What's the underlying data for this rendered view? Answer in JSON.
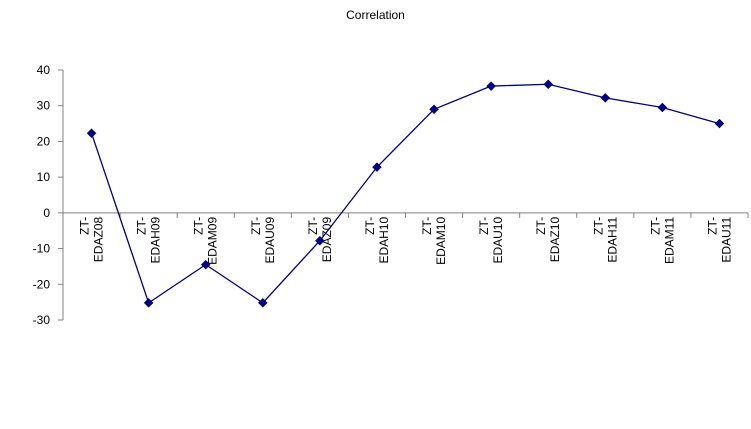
{
  "chart_data": {
    "type": "line",
    "title": "Correlation",
    "xlabel": "",
    "ylabel": "",
    "categories": [
      [
        "ZT-",
        "EDAZ08"
      ],
      [
        "ZT-",
        "EDAH09"
      ],
      [
        "ZT-",
        "EDAM09"
      ],
      [
        "ZT-",
        "EDAU09"
      ],
      [
        "ZT-",
        "EDAZ09"
      ],
      [
        "ZT-",
        "EDAH10"
      ],
      [
        "ZT-",
        "EDAM10"
      ],
      [
        "ZT-",
        "EDAU10"
      ],
      [
        "ZT-",
        "EDAZ10"
      ],
      [
        "ZT-",
        "EDAH11"
      ],
      [
        "ZT-",
        "EDAM11"
      ],
      [
        "ZT-",
        "EDAU11"
      ]
    ],
    "series": [
      {
        "values": [
          22.3,
          -25.2,
          -14.5,
          -25.2,
          -7.8,
          12.8,
          29.0,
          35.5,
          36.0,
          32.2,
          29.5,
          25.0
        ],
        "color": "#000080",
        "marker": "diamond"
      }
    ],
    "yticks": [
      -30,
      -20,
      -10,
      0,
      10,
      20,
      30,
      40
    ],
    "ylim": [
      -30,
      40
    ],
    "grid": false,
    "legend": "none"
  }
}
